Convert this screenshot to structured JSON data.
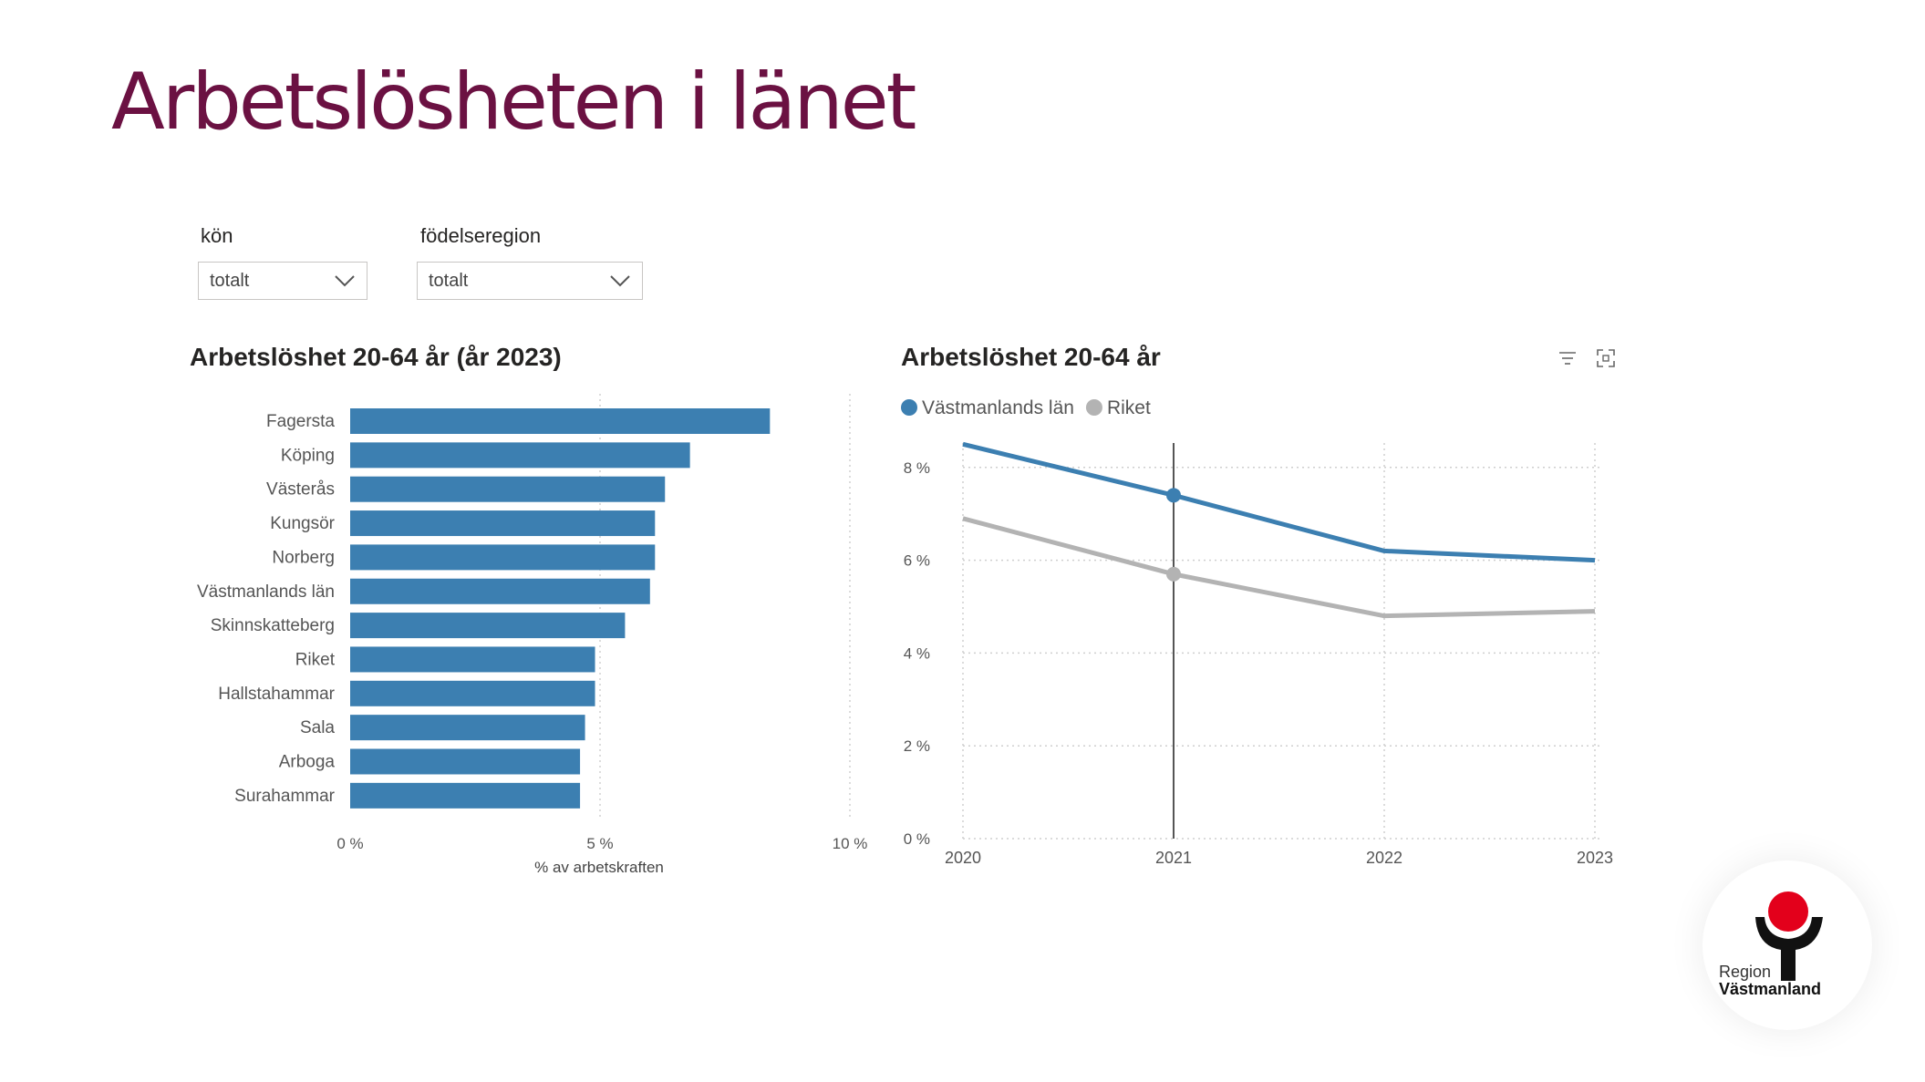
{
  "page": {
    "title": "Arbetslösheten i länet"
  },
  "filters": {
    "kon": {
      "label": "kön",
      "value": "totalt"
    },
    "fodelseregion": {
      "label": "födelseregion",
      "value": "totalt"
    }
  },
  "bar_chart": {
    "title": "Arbetslöshet 20-64 år (år 2023)"
  },
  "line_chart": {
    "title": "Arbetslöshet 20-64 år",
    "icons": [
      "filter-icon",
      "focus-mode-icon"
    ]
  },
  "logo": {
    "line1": "Region",
    "line2": "Västmanland",
    "circle_color": "#e3001b"
  },
  "chart_data": [
    {
      "type": "bar",
      "orientation": "horizontal",
      "title": "Arbetslöshet 20-64 år (år 2023)",
      "categories": [
        "Fagersta",
        "Köping",
        "Västerås",
        "Kungsör",
        "Norberg",
        "Västmanlands län",
        "Skinnskatteberg",
        "Riket",
        "Hallstahammar",
        "Sala",
        "Arboga",
        "Surahammar"
      ],
      "values": [
        8.4,
        6.8,
        6.3,
        6.1,
        6.1,
        6.0,
        5.5,
        4.9,
        4.9,
        4.7,
        4.6,
        4.6
      ],
      "xlabel": "% av arbetskraften",
      "xlim": [
        0,
        10
      ],
      "xticks": [
        "0 %",
        "5 %",
        "10 %"
      ],
      "color": "#3c7fb1",
      "grid": true
    },
    {
      "type": "line",
      "title": "Arbetslöshet 20-64 år",
      "x": [
        "2020",
        "2021",
        "2022",
        "2023"
      ],
      "series": [
        {
          "name": "Västmanlands län",
          "values": [
            8.5,
            7.4,
            6.2,
            6.0
          ],
          "color": "#3c7fb1"
        },
        {
          "name": "Riket",
          "values": [
            6.9,
            5.7,
            4.8,
            4.9
          ],
          "color": "#b3b3b3"
        }
      ],
      "ylim": [
        0,
        8.5
      ],
      "yticks": [
        "0 %",
        "2 %",
        "4 %",
        "6 %",
        "8 %"
      ],
      "highlighted_x": "2021",
      "legend": "top-left",
      "grid": true
    }
  ]
}
